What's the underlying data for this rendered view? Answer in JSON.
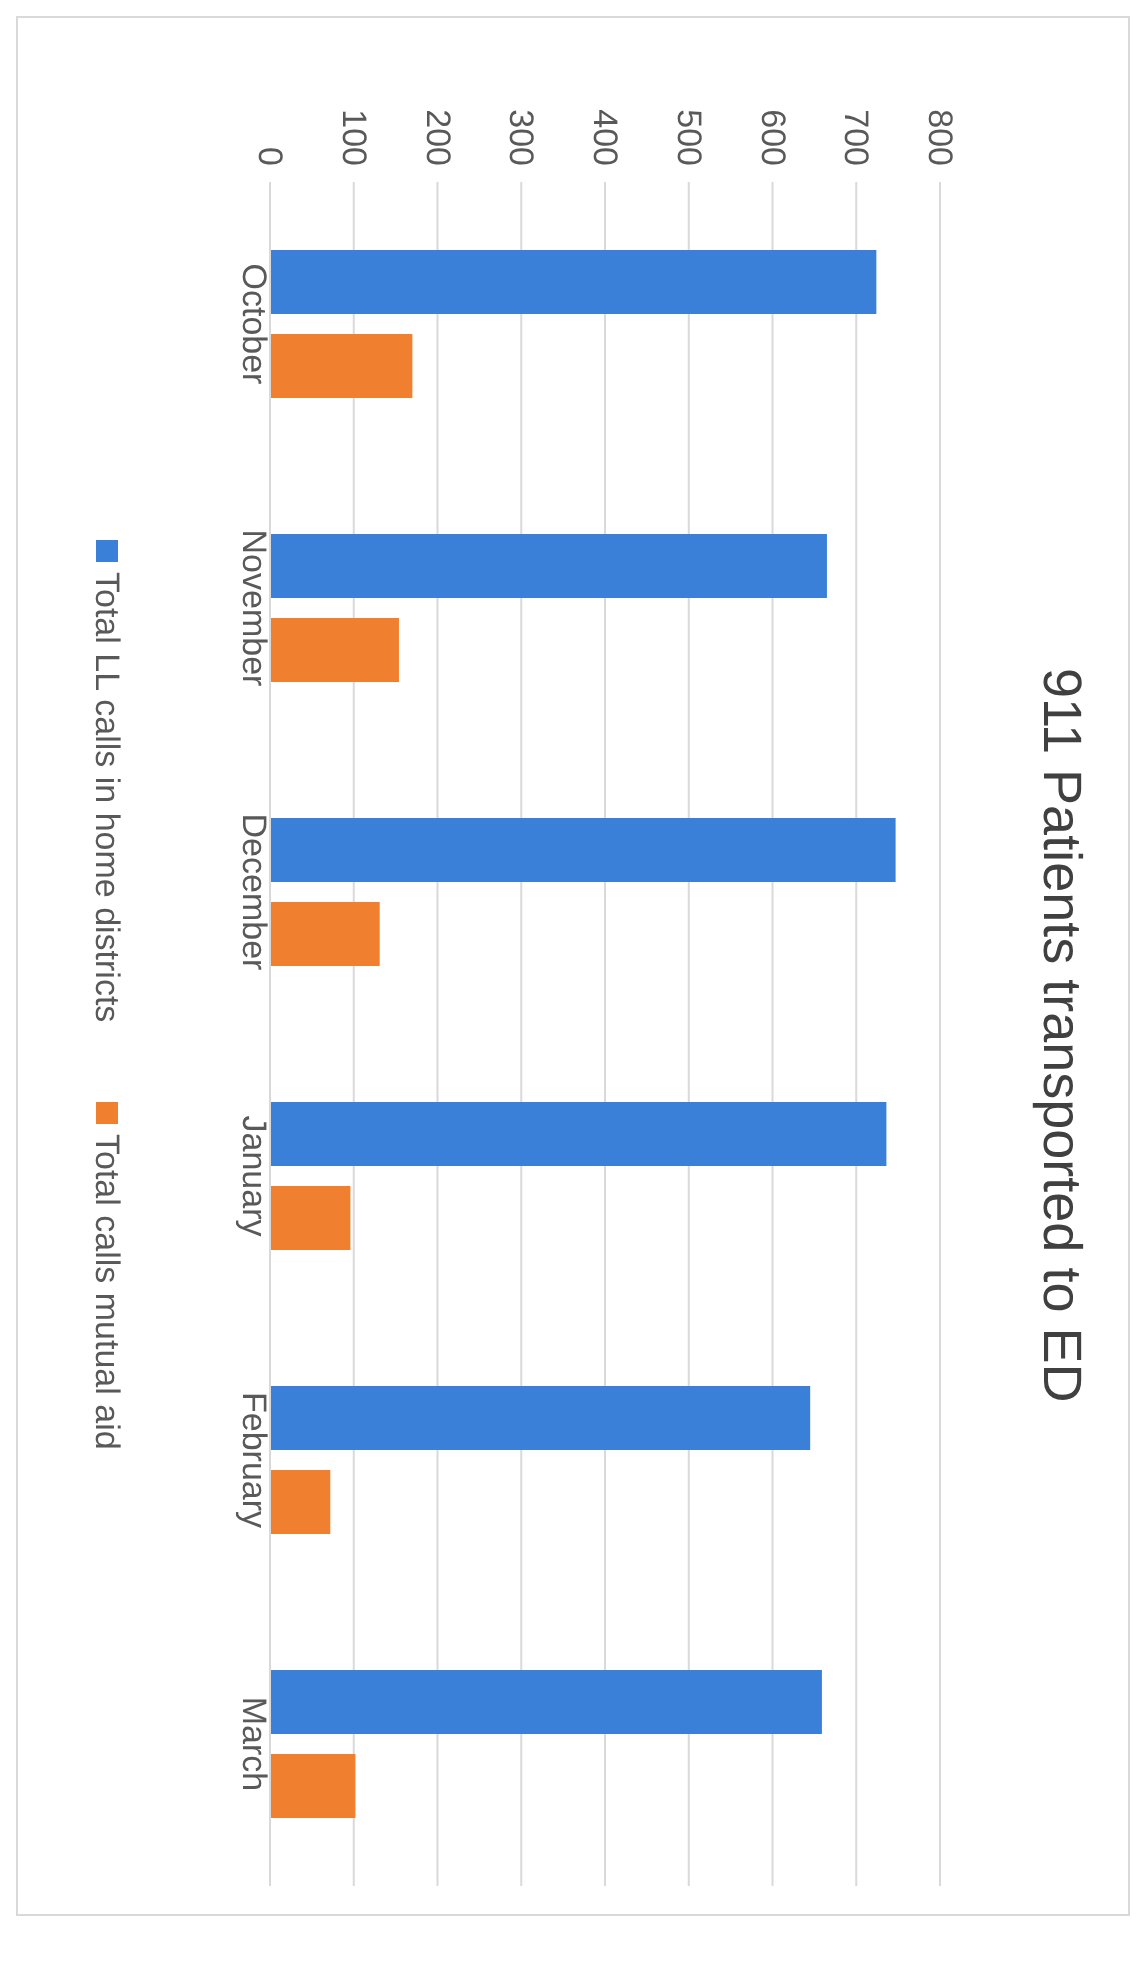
{
  "chart_data": {
    "type": "bar",
    "orientation": "horizontal",
    "title": "911 Patients transported to ED",
    "categories": [
      "October",
      "November",
      "December",
      "January",
      "February",
      "March"
    ],
    "series": [
      {
        "name": "Total LL calls in home districts",
        "color": "#3a7fd8",
        "values": [
          724,
          665,
          747,
          736,
          645,
          659
        ]
      },
      {
        "name": "Total calls mutual aid",
        "color": "#f08030",
        "values": [
          170,
          154,
          131,
          96,
          72,
          102
        ]
      }
    ],
    "xlim": [
      0,
      800
    ],
    "xticks": [
      0,
      100,
      200,
      300,
      400,
      500,
      600,
      700,
      800
    ],
    "grid": "x",
    "legend": "left"
  }
}
